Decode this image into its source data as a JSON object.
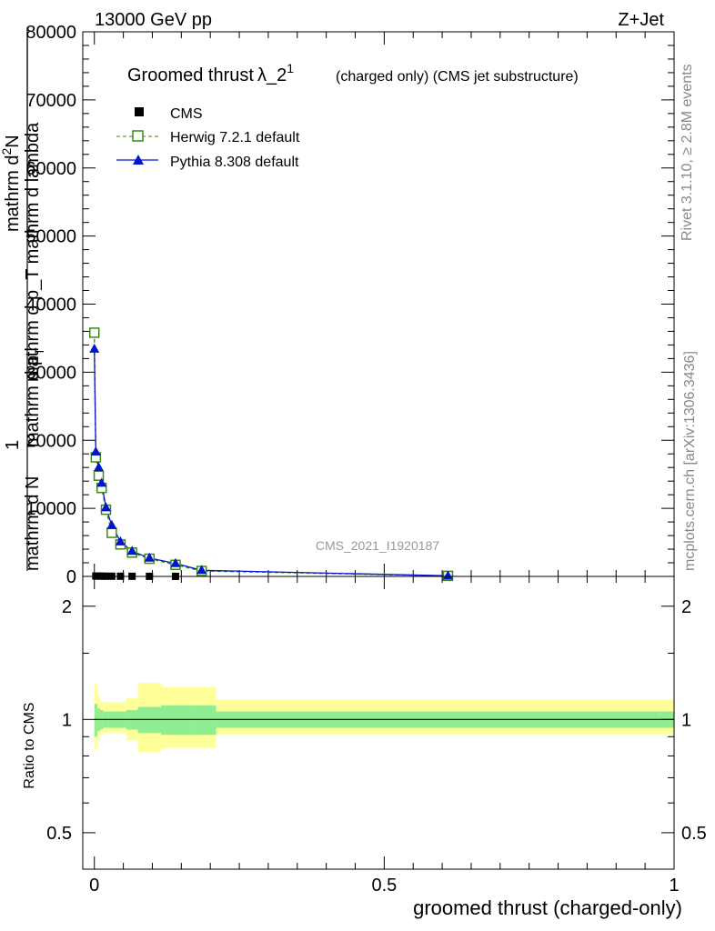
{
  "header": {
    "left": "13000 GeV pp",
    "right": "Z+Jet"
  },
  "side_text": {
    "rivet": "Rivet 3.1.10, ≥ 2.8M events",
    "mcplots": "mcplots.cern.ch [arXiv:1306.3436]"
  },
  "watermark": "CMS_2021_I1920187",
  "chart_data": [
    {
      "type": "line",
      "title_main": "Groomed thrust",
      "title_lambda": "λ_2",
      "title_sup": "1",
      "title_rest": "(charged only) (CMS jet substructure)",
      "ylabel": "1 / mathrm d N / mathrm d p_T mathrm d^2N / mathrm d p_T mathrm d lambda",
      "ylabel_lines": [
        "mathrm d N",
        "mathrm d p",
        "T",
        "mathrm d^2N",
        "mathrm d p_T mathrm d lambda"
      ],
      "ylabel_parts": {
        "one": "1",
        "den1": "mathrm d N",
        "den2": "mathrm d p",
        "den2_sub": "T",
        "num1": "mathrm d",
        "num1_sup": "2",
        "num1_b": "N",
        "den3": "mathrm d p_T mathrm d lambda"
      },
      "xlim": [
        -0.02,
        1.0
      ],
      "ylim": [
        0,
        80000
      ],
      "yticks": [
        0,
        10000,
        20000,
        30000,
        40000,
        50000,
        60000,
        70000,
        80000
      ],
      "ytick_labels": [
        "0",
        "10000",
        "20000",
        "30000",
        "40000",
        "50000",
        "60000",
        "70000",
        "80000"
      ],
      "legend_position": "top-left",
      "series": [
        {
          "name": "CMS",
          "color": "#000000",
          "marker": "square-filled",
          "x": [
            0.0025,
            0.0075,
            0.0125,
            0.02,
            0.03,
            0.045,
            0.065,
            0.095,
            0.14,
            0.61
          ],
          "values": [
            60,
            50,
            40,
            35,
            30,
            25,
            20,
            15,
            10,
            2
          ]
        },
        {
          "name": "Herwig 7.2.1 default",
          "color": "#3a8a16",
          "marker": "square-open",
          "line": "dashed",
          "x": [
            0.0,
            0.0025,
            0.0075,
            0.0125,
            0.02,
            0.03,
            0.045,
            0.065,
            0.095,
            0.14,
            0.185,
            0.61
          ],
          "values": [
            35800,
            17500,
            14800,
            13000,
            9800,
            6400,
            4700,
            3500,
            2600,
            1700,
            800,
            80
          ]
        },
        {
          "name": "Pythia 8.308 default",
          "color": "#0015d0",
          "marker": "triangle-filled",
          "line": "solid",
          "x": [
            0.0,
            0.0025,
            0.0075,
            0.0125,
            0.02,
            0.03,
            0.045,
            0.065,
            0.095,
            0.14,
            0.185,
            0.61
          ],
          "values": [
            33400,
            18300,
            16000,
            13700,
            10100,
            7500,
            5100,
            3700,
            2700,
            1900,
            900,
            90
          ]
        }
      ]
    },
    {
      "type": "area",
      "ylabel": "Ratio to CMS",
      "xlabel": "groomed thrust (charged-only)",
      "xlim": [
        -0.02,
        1.0
      ],
      "ylim": [
        0.4,
        2.4
      ],
      "log_y": true,
      "yticks": [
        0.5,
        1,
        2
      ],
      "ytick_labels": [
        "0.5",
        "1",
        "2"
      ],
      "xticks": [
        0,
        0.5,
        1
      ],
      "xtick_labels": [
        "0",
        "0.5",
        "1"
      ],
      "bin_edges": [
        0.0,
        0.005,
        0.01,
        0.015,
        0.025,
        0.035,
        0.055,
        0.075,
        0.115,
        0.165,
        0.21,
        1.0
      ],
      "inner_band": {
        "color": "#90ee90",
        "low": [
          0.9,
          0.93,
          0.94,
          0.95,
          0.95,
          0.95,
          0.94,
          0.92,
          0.91,
          0.91,
          0.95
        ],
        "high": [
          1.1,
          1.07,
          1.06,
          1.05,
          1.05,
          1.05,
          1.06,
          1.08,
          1.09,
          1.09,
          1.05
        ]
      },
      "outer_band": {
        "color": "#ffff9a",
        "low": [
          0.83,
          0.88,
          0.91,
          0.92,
          0.92,
          0.92,
          0.88,
          0.82,
          0.84,
          0.84,
          0.91
        ],
        "high": [
          1.25,
          1.16,
          1.12,
          1.11,
          1.11,
          1.11,
          1.14,
          1.25,
          1.22,
          1.22,
          1.13
        ]
      },
      "reference_line": 1
    }
  ]
}
